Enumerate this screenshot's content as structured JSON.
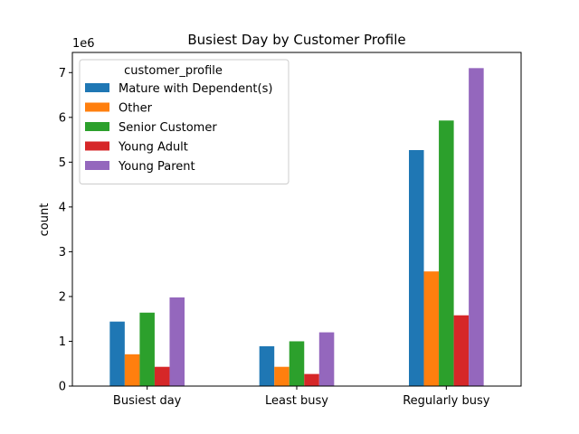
{
  "chart_data": {
    "type": "bar",
    "title": "Busiest Day by Customer Profile",
    "xlabel": "",
    "ylabel": "count",
    "y_multiplier_label": "1e6",
    "ylim": [
      0,
      7450000
    ],
    "y_ticks": [
      0,
      1000000,
      2000000,
      3000000,
      4000000,
      5000000,
      6000000,
      7000000
    ],
    "y_tick_labels": [
      "0",
      "1",
      "2",
      "3",
      "4",
      "5",
      "6",
      "7"
    ],
    "categories": [
      "Busiest day",
      "Least busy",
      "Regularly busy"
    ],
    "legend_title": "customer_profile",
    "legend_position": "upper-left",
    "grid": false,
    "series": [
      {
        "name": "Mature with Dependent(s)",
        "color": "#1f77b4",
        "values": [
          1440000,
          890000,
          5270000
        ]
      },
      {
        "name": "Other",
        "color": "#ff7f0e",
        "values": [
          710000,
          430000,
          2560000
        ]
      },
      {
        "name": "Senior Customer",
        "color": "#2ca02c",
        "values": [
          1640000,
          1000000,
          5930000
        ]
      },
      {
        "name": "Young Adult",
        "color": "#d62728",
        "values": [
          430000,
          270000,
          1580000
        ]
      },
      {
        "name": "Young Parent",
        "color": "#9467bd",
        "values": [
          1980000,
          1200000,
          7100000
        ]
      }
    ]
  }
}
